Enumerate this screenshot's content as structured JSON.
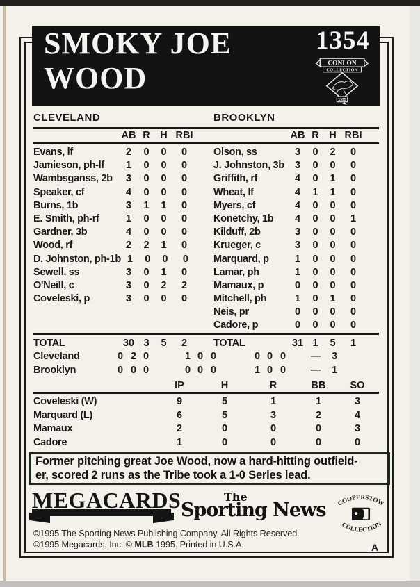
{
  "colors": {
    "header_black": "#131313",
    "card_stock": "#f4f1ea",
    "rule_ink": "#161616",
    "caption_border": "#20291f"
  },
  "header": {
    "number": "1354",
    "title_line1": "SMOKY JOE",
    "title_line2": "WOOD",
    "badge_line1": "CONLON",
    "badge_line2": "COLLECTION",
    "badge_year": "1995"
  },
  "boxscore": {
    "teams": [
      {
        "name": "CLEVELAND",
        "columns": [
          "AB",
          "R",
          "H",
          "RBI"
        ],
        "players": [
          {
            "name": "Evans, lf",
            "stats": [
              "2",
              "0",
              "0",
              "0"
            ]
          },
          {
            "name": "Jamieson, ph-lf",
            "stats": [
              "1",
              "0",
              "0",
              "0"
            ]
          },
          {
            "name": "Wambsganss, 2b",
            "stats": [
              "3",
              "0",
              "0",
              "0"
            ]
          },
          {
            "name": "Speaker, cf",
            "stats": [
              "4",
              "0",
              "0",
              "0"
            ]
          },
          {
            "name": "Burns, 1b",
            "stats": [
              "3",
              "1",
              "1",
              "0"
            ]
          },
          {
            "name": "E. Smith, ph-rf",
            "stats": [
              "1",
              "0",
              "0",
              "0"
            ]
          },
          {
            "name": "Gardner, 3b",
            "stats": [
              "4",
              "0",
              "0",
              "0"
            ]
          },
          {
            "name": "Wood, rf",
            "stats": [
              "2",
              "2",
              "1",
              "0"
            ]
          },
          {
            "name": "D. Johnston, ph-1b",
            "stats": [
              "1",
              "0",
              "0",
              "0"
            ]
          },
          {
            "name": "Sewell, ss",
            "stats": [
              "3",
              "0",
              "1",
              "0"
            ]
          },
          {
            "name": "O'Neill, c",
            "stats": [
              "3",
              "0",
              "2",
              "2"
            ]
          },
          {
            "name": "Coveleski, p",
            "stats": [
              "3",
              "0",
              "0",
              "0"
            ]
          }
        ],
        "total_label": "TOTAL",
        "total": [
          "30",
          "3",
          "5",
          "2"
        ]
      },
      {
        "name": "BROOKLYN",
        "columns": [
          "AB",
          "R",
          "H",
          "RBI"
        ],
        "players": [
          {
            "name": "Olson, ss",
            "stats": [
              "3",
              "0",
              "2",
              "0"
            ]
          },
          {
            "name": "J. Johnston, 3b",
            "stats": [
              "3",
              "0",
              "0",
              "0"
            ]
          },
          {
            "name": "Griffith, rf",
            "stats": [
              "4",
              "0",
              "1",
              "0"
            ]
          },
          {
            "name": "Wheat, lf",
            "stats": [
              "4",
              "1",
              "1",
              "0"
            ]
          },
          {
            "name": "Myers, cf",
            "stats": [
              "4",
              "0",
              "0",
              "0"
            ]
          },
          {
            "name": "Konetchy, 1b",
            "stats": [
              "4",
              "0",
              "0",
              "1"
            ]
          },
          {
            "name": "Kilduff, 2b",
            "stats": [
              "3",
              "0",
              "0",
              "0"
            ]
          },
          {
            "name": "Krueger, c",
            "stats": [
              "3",
              "0",
              "0",
              "0"
            ]
          },
          {
            "name": "Marquard, p",
            "stats": [
              "1",
              "0",
              "0",
              "0"
            ]
          },
          {
            "name": "Lamar, ph",
            "stats": [
              "1",
              "0",
              "0",
              "0"
            ]
          },
          {
            "name": "Mamaux, p",
            "stats": [
              "0",
              "0",
              "0",
              "0"
            ]
          },
          {
            "name": "Mitchell, ph",
            "stats": [
              "1",
              "0",
              "1",
              "0"
            ]
          },
          {
            "name": "Neis, pr",
            "stats": [
              "0",
              "0",
              "0",
              "0"
            ]
          },
          {
            "name": "Cadore, p",
            "stats": [
              "0",
              "0",
              "0",
              "0"
            ]
          }
        ],
        "total_label": "TOTAL",
        "total": [
          "31",
          "1",
          "5",
          "1"
        ]
      }
    ]
  },
  "linescore": {
    "rows": [
      {
        "team": "Cleveland",
        "cells": [
          "0",
          "2",
          "0",
          "1",
          "0",
          "0",
          "0",
          "0",
          "0"
        ],
        "dash": "—",
        "total": "3"
      },
      {
        "team": "Brooklyn",
        "cells": [
          "0",
          "0",
          "0",
          "0",
          "0",
          "0",
          "1",
          "0",
          "0"
        ],
        "dash": "—",
        "total": "1"
      }
    ]
  },
  "pitching": {
    "columns": [
      "IP",
      "H",
      "R",
      "BB",
      "SO"
    ],
    "rows": [
      {
        "name": "Coveleski (W)",
        "values": [
          "9",
          "5",
          "1",
          "1",
          "3"
        ]
      },
      {
        "name": "Marquard (L)",
        "values": [
          "6",
          "5",
          "3",
          "2",
          "4"
        ]
      },
      {
        "name": "Mamaux",
        "values": [
          "2",
          "0",
          "0",
          "0",
          "3"
        ]
      },
      {
        "name": "Cadore",
        "values": [
          "1",
          "0",
          "0",
          "0",
          "0"
        ]
      }
    ]
  },
  "caption": {
    "line1": "Former pitching great Joe Wood, now a hard-hitting outfield-",
    "line2": "er, scored 2 runs as the Tribe took a 1-0 Series lead."
  },
  "footer": {
    "megacards": "MEGACARDS.",
    "tsn_the": "The",
    "tsn_name": "Sporting News",
    "coop_top": "COOPERSTOWN",
    "coop_bottom": "COLLECTION",
    "copyright_line1": "©1995 The Sporting News Publishing Company. All Rights Reserved.",
    "copyright_line2_pre": "©1995 Megacards, Inc. © ",
    "copyright_line2_bold": "MLB",
    "copyright_line2_post": " 1995.  Printed in U.S.A.",
    "print_marker": "A"
  }
}
